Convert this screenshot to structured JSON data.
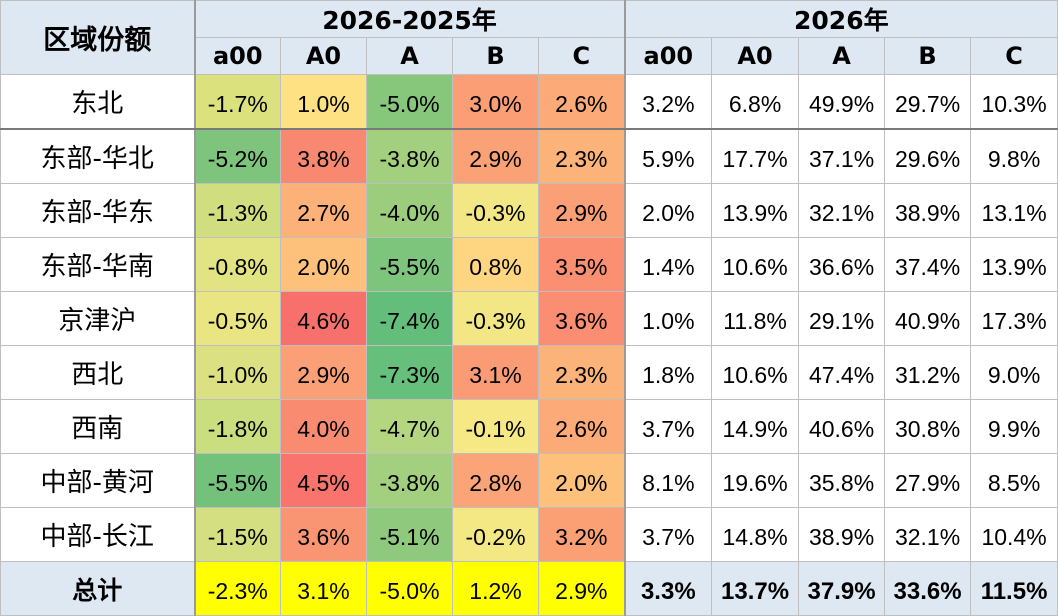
{
  "header": {
    "region_label": "区域份额",
    "group_change": "2026-2025年",
    "group_share": "2026年",
    "segments": [
      "a00",
      "A0",
      "A",
      "B",
      "C"
    ]
  },
  "rows": [
    {
      "region": "东北",
      "change": [
        "-1.7%",
        "1.0%",
        "-5.0%",
        "3.0%",
        "2.6%"
      ],
      "share": [
        "3.2%",
        "6.8%",
        "49.9%",
        "29.7%",
        "10.3%"
      ]
    },
    {
      "region": "东部-华北",
      "change": [
        "-5.2%",
        "3.8%",
        "-3.8%",
        "2.9%",
        "2.3%"
      ],
      "share": [
        "5.9%",
        "17.7%",
        "37.1%",
        "29.6%",
        "9.8%"
      ]
    },
    {
      "region": "东部-华东",
      "change": [
        "-1.3%",
        "2.7%",
        "-4.0%",
        "-0.3%",
        "2.9%"
      ],
      "share": [
        "2.0%",
        "13.9%",
        "32.1%",
        "38.9%",
        "13.1%"
      ]
    },
    {
      "region": "东部-华南",
      "change": [
        "-0.8%",
        "2.0%",
        "-5.5%",
        "0.8%",
        "3.5%"
      ],
      "share": [
        "1.4%",
        "10.6%",
        "36.6%",
        "37.4%",
        "13.9%"
      ]
    },
    {
      "region": "京津沪",
      "change": [
        "-0.5%",
        "4.6%",
        "-7.4%",
        "-0.3%",
        "3.6%"
      ],
      "share": [
        "1.0%",
        "11.8%",
        "29.1%",
        "40.9%",
        "17.3%"
      ]
    },
    {
      "region": "西北",
      "change": [
        "-1.0%",
        "2.9%",
        "-7.3%",
        "3.1%",
        "2.3%"
      ],
      "share": [
        "1.8%",
        "10.6%",
        "47.4%",
        "31.2%",
        "9.0%"
      ]
    },
    {
      "region": "西南",
      "change": [
        "-1.8%",
        "4.0%",
        "-4.7%",
        "-0.1%",
        "2.6%"
      ],
      "share": [
        "3.7%",
        "14.9%",
        "40.6%",
        "30.8%",
        "9.9%"
      ]
    },
    {
      "region": "中部-黄河",
      "change": [
        "-5.5%",
        "4.5%",
        "-3.8%",
        "2.8%",
        "2.0%"
      ],
      "share": [
        "8.1%",
        "19.6%",
        "35.8%",
        "27.9%",
        "8.5%"
      ]
    },
    {
      "region": "中部-长江",
      "change": [
        "-1.5%",
        "3.6%",
        "-5.1%",
        "-0.2%",
        "3.2%"
      ],
      "share": [
        "3.7%",
        "14.8%",
        "38.9%",
        "32.1%",
        "10.4%"
      ]
    }
  ],
  "total": {
    "region": "总计",
    "change": [
      "-2.3%",
      "3.1%",
      "-5.0%",
      "1.2%",
      "2.9%"
    ],
    "share": [
      "3.3%",
      "13.7%",
      "37.9%",
      "33.6%",
      "11.5%"
    ]
  },
  "colors": {
    "header_bg": "#dde8f3",
    "total_change_bg": "#ffff00",
    "change_cells": [
      [
        "#dbe17d",
        "#fee183",
        "#86c77c",
        "#fb9d75",
        "#fcab78"
      ],
      [
        "#7ec47c",
        "#f98870",
        "#a3d07e",
        "#fba176",
        "#fcb379"
      ],
      [
        "#d0de7f",
        "#fcb179",
        "#9ccd7d",
        "#f2e784",
        "#fba076"
      ],
      [
        "#e2e383",
        "#fdc17c",
        "#7dc47c",
        "#fed580",
        "#fa8f72"
      ],
      [
        "#e9e582",
        "#f8706b",
        "#63be7b",
        "#f2e784",
        "#fa8d72"
      ],
      [
        "#dbe182",
        "#fba076",
        "#66bf7b",
        "#fa9b75",
        "#fcb37a"
      ],
      [
        "#cadd7f",
        "#f98b71",
        "#b5d680",
        "#f6e884",
        "#fcab78"
      ],
      [
        "#74c17c",
        "#f8746c",
        "#a3d07e",
        "#fba477",
        "#fdc17c"
      ],
      [
        "#d4df81",
        "#fa9574",
        "#8ec97d",
        "#f4e884",
        "#fb9f75"
      ]
    ]
  }
}
